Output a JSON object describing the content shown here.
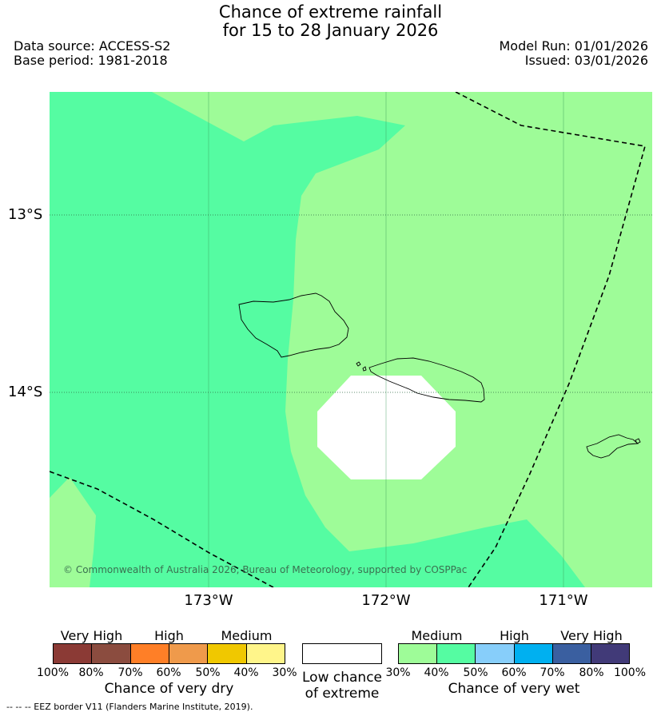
{
  "title": {
    "line1": "Chance of extreme rainfall",
    "line2": "for 15 to 28 January 2026"
  },
  "meta": {
    "data_source": "Data source: ACCESS-S2",
    "base_period": "Base period: 1981-2018",
    "model_run": "Model Run: 01/01/2026",
    "issued": "Issued: 03/01/2026"
  },
  "map": {
    "lat_labels": [
      "13°S",
      "14°S"
    ],
    "lon_labels": [
      "173°W",
      "172°W",
      "171°W"
    ],
    "copyright": "© Commonwealth of Australia 2026, Bureau of Meteorology, supported by COSPPac",
    "colors": {
      "medium_wet": "#9efc98",
      "high_40_50": "#55fca2",
      "low_chance": "#ffffff",
      "coastline": "#000000",
      "eez_border": "#000000"
    }
  },
  "legend": {
    "dry": {
      "headings": [
        "Very High",
        "High",
        "Medium"
      ],
      "ticks": [
        "100%",
        "80%",
        "70%",
        "60%",
        "50%",
        "40%",
        "30%"
      ],
      "colors": [
        "#8b3a35",
        "#8b4c3f",
        "#ff7f27",
        "#ef9a4b",
        "#f0c800",
        "#fff58a"
      ],
      "caption": "Chance of very dry"
    },
    "low": {
      "caption_line1": "Low chance",
      "caption_line2": "of extreme",
      "color": "#ffffff"
    },
    "wet": {
      "headings": [
        "Medium",
        "High",
        "Very High"
      ],
      "ticks": [
        "30%",
        "40%",
        "50%",
        "60%",
        "70%",
        "80%",
        "100%"
      ],
      "colors": [
        "#9efc98",
        "#55fca2",
        "#87cefa",
        "#00b0f0",
        "#3a5fa0",
        "#413a78"
      ],
      "caption": "Chance of very wet"
    }
  },
  "footer": "--  --  -- EEZ border V11 (Flanders Marine Institute, 2019)."
}
